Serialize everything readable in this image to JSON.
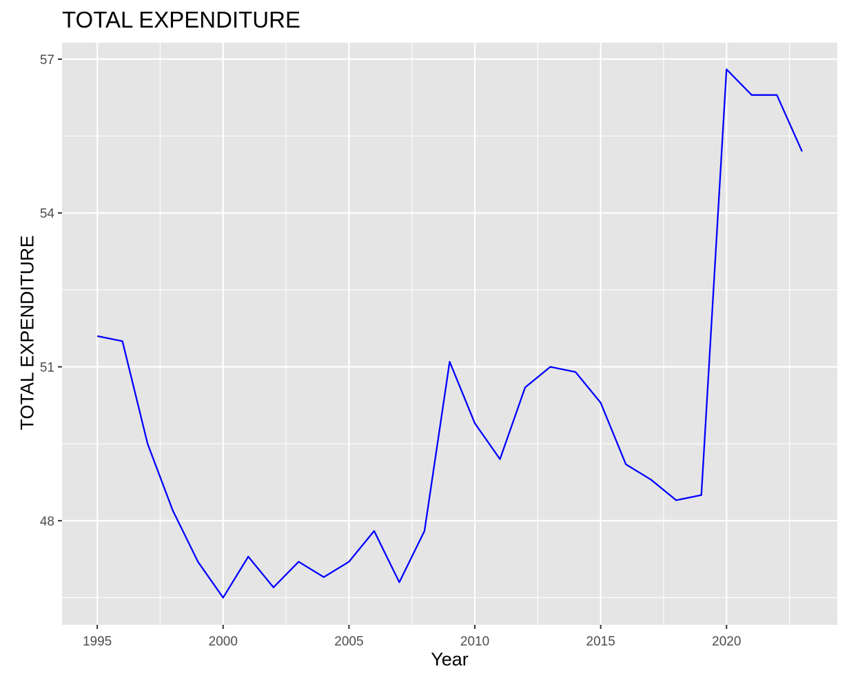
{
  "chart_data": {
    "type": "line",
    "title": "TOTAL EXPENDITURE",
    "xlabel": "Year",
    "ylabel": "TOTAL EXPENDITURE",
    "x_ticks": [
      "1995",
      "2000",
      "2005",
      "2010",
      "2015",
      "2020"
    ],
    "x_tick_values": [
      1995,
      2000,
      2005,
      2010,
      2015,
      2020
    ],
    "y_ticks": [
      "48",
      "51",
      "54",
      "57"
    ],
    "y_tick_values": [
      48,
      51,
      54,
      57
    ],
    "xlim": [
      1993.6,
      2024.4
    ],
    "ylim": [
      45.97,
      57.32
    ],
    "grid": true,
    "line_color": "#0000ff",
    "panel_background": "#e5e5e5",
    "series": [
      {
        "x": [
          1995,
          1996,
          1997,
          1998,
          1999,
          2000,
          2001,
          2002,
          2003,
          2004,
          2005,
          2006,
          2007,
          2008,
          2009,
          2010,
          2011,
          2012,
          2013,
          2014,
          2015,
          2016,
          2017,
          2018,
          2019,
          2020,
          2021,
          2022,
          2023
        ],
        "values": [
          51.6,
          51.5,
          49.5,
          48.2,
          47.2,
          46.5,
          47.3,
          46.7,
          47.2,
          46.9,
          47.2,
          47.8,
          46.8,
          47.8,
          51.1,
          49.9,
          49.2,
          50.6,
          51.0,
          50.9,
          50.3,
          49.1,
          48.8,
          48.4,
          48.5,
          56.8,
          56.3,
          56.3,
          55.2
        ]
      }
    ]
  }
}
